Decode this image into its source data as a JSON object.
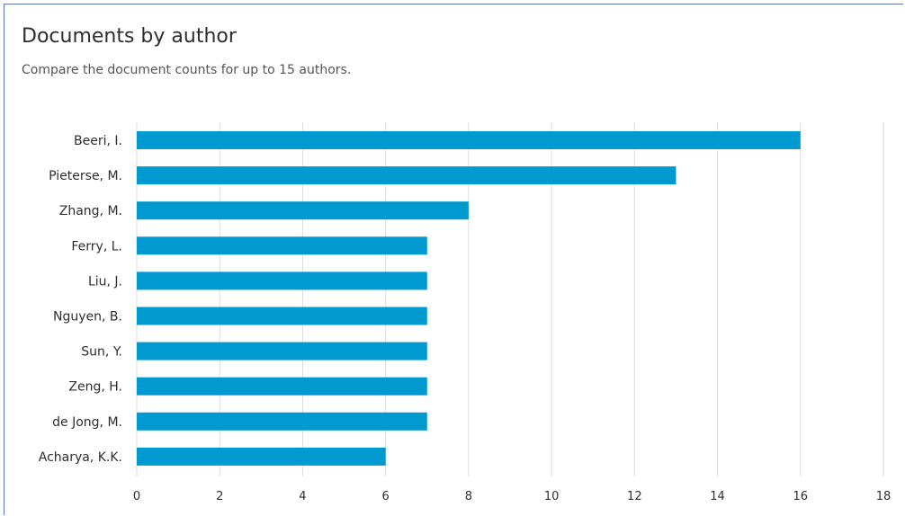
{
  "header": {
    "title": "Documents by author",
    "subtitle": "Compare the document counts for up to 15 authors."
  },
  "chart_data": {
    "type": "bar",
    "orientation": "horizontal",
    "title": "Documents by author",
    "subtitle": "Compare the document counts for up to 15 authors.",
    "categories": [
      "Beeri, I.",
      "Pieterse, M.",
      "Zhang, M.",
      "Ferry, L.",
      "Liu, J.",
      "Nguyen, B.",
      "Sun, Y.",
      "Zeng, H.",
      "de Jong, M.",
      "Acharya, K.K."
    ],
    "values": [
      16,
      13,
      8,
      7,
      7,
      7,
      7,
      7,
      7,
      6
    ],
    "xlabel": "",
    "ylabel": "",
    "xlim": [
      0,
      18
    ],
    "xticks": [
      0,
      2,
      4,
      6,
      8,
      10,
      12,
      14,
      16,
      18
    ],
    "grid": true,
    "bar_color": "#009ad1",
    "grid_color": "#dcdcdc"
  }
}
